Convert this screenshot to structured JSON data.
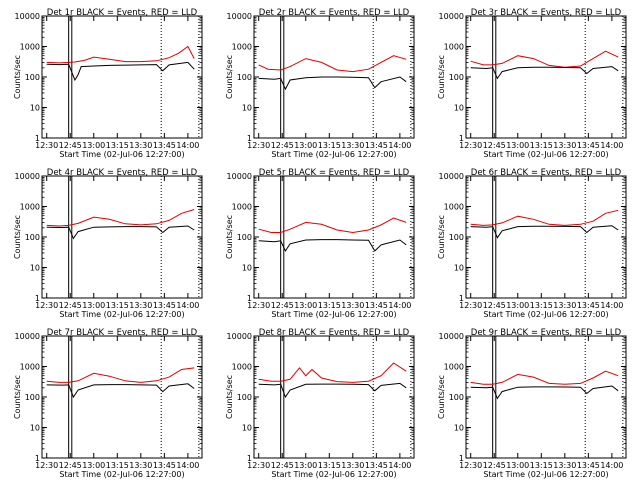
{
  "figure": {
    "background": "#ffffff",
    "axis_color": "#000000",
    "lld_color": "#e00000",
    "events_color": "#000000"
  },
  "chart_data": [
    {
      "type": "line",
      "title": "Det 1r BLACK = Events, RED = LLD",
      "xlabel": "Start Time (02-Jul-06 12:27:00)",
      "ylabel": "Counts/sec",
      "x_ticks": [
        "12:30",
        "12:45",
        "13:00",
        "13:15",
        "13:30",
        "13:45",
        "14:00"
      ],
      "y_ticks": [
        "1",
        "10",
        "100",
        "1000",
        "10000"
      ],
      "ylim": [
        1,
        10000
      ],
      "yscale": "log",
      "series": [
        {
          "name": "LLD",
          "x": [
            "12:30",
            "12:38",
            "12:44",
            "12:48",
            "12:54",
            "13:00",
            "13:10",
            "13:20",
            "13:30",
            "13:40",
            "13:44",
            "13:48",
            "13:54",
            "14:00",
            "14:04"
          ],
          "values": [
            300,
            290,
            300,
            310,
            350,
            450,
            380,
            320,
            320,
            340,
            380,
            430,
            600,
            1000,
            400
          ]
        },
        {
          "name": "Events",
          "x": [
            "12:30",
            "12:38",
            "12:44",
            "12:48",
            "12:50",
            "12:52",
            "13:00",
            "13:10",
            "13:20",
            "13:30",
            "13:40",
            "13:44",
            "13:48",
            "14:00",
            "14:04"
          ],
          "values": [
            260,
            255,
            260,
            80,
            120,
            220,
            230,
            240,
            245,
            250,
            255,
            160,
            250,
            300,
            180
          ]
        }
      ]
    },
    {
      "type": "line",
      "title": "Det 2r BLACK = Events, RED = LLD",
      "xlabel": "Start Time (02-Jul-06 12:27:00)",
      "ylabel": "Counts/sec",
      "x_ticks": [
        "12:30",
        "12:45",
        "13:00",
        "13:15",
        "13:30",
        "13:45",
        "14:00"
      ],
      "y_ticks": [
        "1",
        "10",
        "100",
        "1000",
        "10000"
      ],
      "ylim": [
        1,
        10000
      ],
      "yscale": "log",
      "series": [
        {
          "name": "LLD",
          "x": [
            "12:30",
            "12:36",
            "12:44",
            "12:50",
            "13:00",
            "13:10",
            "13:20",
            "13:30",
            "13:40",
            "13:48",
            "13:56",
            "14:04"
          ],
          "values": [
            250,
            180,
            170,
            220,
            400,
            300,
            170,
            150,
            180,
            300,
            500,
            380
          ]
        },
        {
          "name": "Events",
          "x": [
            "12:30",
            "12:40",
            "12:44",
            "12:47",
            "12:50",
            "13:00",
            "13:10",
            "13:20",
            "13:30",
            "13:40",
            "13:44",
            "13:48",
            "14:00",
            "14:04"
          ],
          "values": [
            90,
            85,
            90,
            40,
            80,
            95,
            100,
            100,
            98,
            95,
            45,
            70,
            100,
            70
          ]
        }
      ]
    },
    {
      "type": "line",
      "title": "Det 3r BLACK = Events, RED = LLD",
      "xlabel": "Start Time (02-Jul-06 12:27:00)",
      "ylabel": "Counts/sec",
      "x_ticks": [
        "12:30",
        "12:45",
        "13:00",
        "13:15",
        "13:30",
        "13:45",
        "14:00"
      ],
      "y_ticks": [
        "1",
        "10",
        "100",
        "1000",
        "10000"
      ],
      "ylim": [
        1,
        10000
      ],
      "yscale": "log",
      "series": [
        {
          "name": "LLD",
          "x": [
            "12:30",
            "12:38",
            "12:44",
            "12:50",
            "13:00",
            "13:10",
            "13:20",
            "13:30",
            "13:40",
            "13:48",
            "13:56",
            "14:04"
          ],
          "values": [
            330,
            250,
            250,
            280,
            500,
            400,
            240,
            210,
            230,
            400,
            700,
            450
          ]
        },
        {
          "name": "Events",
          "x": [
            "12:30",
            "12:40",
            "12:44",
            "12:47",
            "12:50",
            "13:00",
            "13:10",
            "13:20",
            "13:30",
            "13:40",
            "13:44",
            "13:48",
            "14:00",
            "14:04"
          ],
          "values": [
            200,
            190,
            200,
            90,
            150,
            200,
            210,
            210,
            205,
            200,
            130,
            190,
            220,
            160
          ]
        }
      ]
    },
    {
      "type": "line",
      "title": "Det 4r BLACK = Events, RED = LLD",
      "xlabel": "Start Time (02-Jul-06 12:27:00)",
      "ylabel": "Counts/sec",
      "x_ticks": [
        "12:30",
        "12:45",
        "13:00",
        "13:15",
        "13:30",
        "13:45",
        "14:00"
      ],
      "y_ticks": [
        "1",
        "10",
        "100",
        "1000",
        "10000"
      ],
      "ylim": [
        1,
        10000
      ],
      "yscale": "log",
      "series": [
        {
          "name": "LLD",
          "x": [
            "12:30",
            "12:38",
            "12:44",
            "12:50",
            "13:00",
            "13:10",
            "13:20",
            "13:30",
            "13:40",
            "13:48",
            "13:56",
            "14:04"
          ],
          "values": [
            240,
            230,
            240,
            280,
            450,
            380,
            270,
            250,
            270,
            350,
            600,
            800
          ]
        },
        {
          "name": "Events",
          "x": [
            "12:30",
            "12:40",
            "12:44",
            "12:47",
            "12:50",
            "13:00",
            "13:10",
            "13:20",
            "13:30",
            "13:40",
            "13:44",
            "13:48",
            "14:00",
            "14:04"
          ],
          "values": [
            210,
            205,
            210,
            90,
            150,
            210,
            215,
            220,
            220,
            215,
            140,
            210,
            230,
            170
          ]
        }
      ]
    },
    {
      "type": "line",
      "title": "Det 5r BLACK = Events, RED = LLD",
      "xlabel": "Start Time (02-Jul-06 12:27:00)",
      "ylabel": "Counts/sec",
      "x_ticks": [
        "12:30",
        "12:45",
        "13:00",
        "13:15",
        "13:30",
        "13:45",
        "14:00"
      ],
      "y_ticks": [
        "1",
        "10",
        "100",
        "1000",
        "10000"
      ],
      "ylim": [
        1,
        10000
      ],
      "yscale": "log",
      "series": [
        {
          "name": "LLD",
          "x": [
            "12:30",
            "12:38",
            "12:44",
            "12:50",
            "13:00",
            "13:10",
            "13:20",
            "13:30",
            "13:40",
            "13:48",
            "13:56",
            "14:04"
          ],
          "values": [
            180,
            140,
            140,
            180,
            300,
            260,
            170,
            140,
            170,
            250,
            420,
            300
          ]
        },
        {
          "name": "Events",
          "x": [
            "12:30",
            "12:40",
            "12:44",
            "12:47",
            "12:50",
            "13:00",
            "13:10",
            "13:20",
            "13:30",
            "13:40",
            "13:44",
            "13:48",
            "14:00",
            "14:04"
          ],
          "values": [
            75,
            70,
            75,
            35,
            60,
            80,
            82,
            82,
            80,
            78,
            35,
            55,
            80,
            55
          ]
        }
      ]
    },
    {
      "type": "line",
      "title": "Det 6r BLACK = Events, RED = LLD",
      "xlabel": "Start Time (02-Jul-06 12:27:00)",
      "ylabel": "Counts/sec",
      "x_ticks": [
        "12:30",
        "12:45",
        "13:00",
        "13:15",
        "13:30",
        "13:45",
        "14:00"
      ],
      "y_ticks": [
        "1",
        "10",
        "100",
        "1000",
        "10000"
      ],
      "ylim": [
        1,
        10000
      ],
      "yscale": "log",
      "series": [
        {
          "name": "LLD",
          "x": [
            "12:30",
            "12:38",
            "12:44",
            "12:50",
            "13:00",
            "13:10",
            "13:20",
            "13:30",
            "13:40",
            "13:48",
            "13:56",
            "14:04"
          ],
          "values": [
            260,
            240,
            250,
            290,
            480,
            380,
            260,
            240,
            260,
            330,
            600,
            750
          ]
        },
        {
          "name": "Events",
          "x": [
            "12:30",
            "12:40",
            "12:44",
            "12:47",
            "12:50",
            "13:00",
            "13:10",
            "13:20",
            "13:30",
            "13:40",
            "13:44",
            "13:48",
            "14:00",
            "14:04"
          ],
          "values": [
            220,
            210,
            220,
            95,
            160,
            220,
            225,
            225,
            222,
            220,
            140,
            210,
            235,
            170
          ]
        }
      ]
    },
    {
      "type": "line",
      "title": "Det 7r BLACK = Events, RED = LLD",
      "xlabel": "Start Time (02-Jul-06 12:27:00)",
      "ylabel": "Counts/sec",
      "x_ticks": [
        "12:30",
        "12:45",
        "13:00",
        "13:15",
        "13:30",
        "13:45",
        "14:00"
      ],
      "y_ticks": [
        "1",
        "10",
        "100",
        "1000",
        "10000"
      ],
      "ylim": [
        1,
        10000
      ],
      "yscale": "log",
      "series": [
        {
          "name": "LLD",
          "x": [
            "12:30",
            "12:38",
            "12:44",
            "12:50",
            "13:00",
            "13:10",
            "13:20",
            "13:30",
            "13:40",
            "13:48",
            "13:56",
            "14:04"
          ],
          "values": [
            330,
            300,
            300,
            340,
            600,
            480,
            340,
            300,
            340,
            450,
            800,
            900
          ]
        },
        {
          "name": "Events",
          "x": [
            "12:30",
            "12:40",
            "12:44",
            "12:47",
            "12:50",
            "13:00",
            "13:10",
            "13:20",
            "13:30",
            "13:40",
            "13:44",
            "13:48",
            "14:00",
            "14:04"
          ],
          "values": [
            250,
            245,
            250,
            100,
            170,
            250,
            255,
            255,
            250,
            245,
            150,
            230,
            270,
            190
          ]
        }
      ]
    },
    {
      "type": "line",
      "title": "Det 8r BLACK = Events, RED = LLD",
      "xlabel": "Start Time (02-Jul-06 12:27:00)",
      "ylabel": "Counts/sec",
      "x_ticks": [
        "12:30",
        "12:45",
        "13:00",
        "13:15",
        "13:30",
        "13:45",
        "14:00"
      ],
      "y_ticks": [
        "1",
        "10",
        "100",
        "1000",
        "10000"
      ],
      "ylim": [
        1,
        10000
      ],
      "yscale": "log",
      "series": [
        {
          "name": "LLD",
          "x": [
            "12:30",
            "12:38",
            "12:44",
            "12:50",
            "12:56",
            "13:00",
            "13:04",
            "13:10",
            "13:20",
            "13:30",
            "13:40",
            "13:48",
            "13:56",
            "14:04"
          ],
          "values": [
            380,
            330,
            330,
            380,
            900,
            500,
            800,
            420,
            320,
            300,
            330,
            500,
            1300,
            700
          ]
        },
        {
          "name": "Events",
          "x": [
            "12:30",
            "12:40",
            "12:44",
            "12:47",
            "12:50",
            "13:00",
            "13:10",
            "13:20",
            "13:30",
            "13:40",
            "13:44",
            "13:48",
            "14:00",
            "14:04"
          ],
          "values": [
            260,
            250,
            260,
            100,
            170,
            260,
            265,
            265,
            262,
            255,
            160,
            240,
            280,
            200
          ]
        }
      ]
    },
    {
      "type": "line",
      "title": "Det 9r BLACK = Events, RED = LLD",
      "xlabel": "Start Time (02-Jul-06 12:27:00)",
      "ylabel": "Counts/sec",
      "x_ticks": [
        "12:30",
        "12:45",
        "13:00",
        "13:15",
        "13:30",
        "13:45",
        "14:00"
      ],
      "y_ticks": [
        "1",
        "10",
        "100",
        "1000",
        "10000"
      ],
      "ylim": [
        1,
        10000
      ],
      "yscale": "log",
      "series": [
        {
          "name": "LLD",
          "x": [
            "12:30",
            "12:38",
            "12:44",
            "12:50",
            "13:00",
            "13:10",
            "13:20",
            "13:30",
            "13:40",
            "13:48",
            "13:56",
            "14:04"
          ],
          "values": [
            300,
            260,
            260,
            300,
            550,
            450,
            280,
            260,
            280,
            420,
            700,
            500
          ]
        },
        {
          "name": "Events",
          "x": [
            "12:30",
            "12:40",
            "12:44",
            "12:47",
            "12:50",
            "13:00",
            "13:10",
            "13:20",
            "13:30",
            "13:40",
            "13:44",
            "13:48",
            "14:00",
            "14:04"
          ],
          "values": [
            210,
            200,
            210,
            90,
            150,
            210,
            215,
            215,
            212,
            210,
            130,
            190,
            230,
            160
          ]
        }
      ]
    }
  ]
}
